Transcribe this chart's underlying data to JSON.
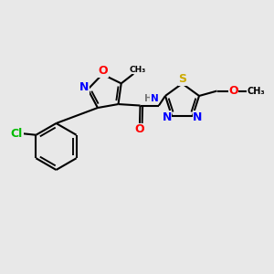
{
  "bg_color": "#e8e8e8",
  "bond_color": "#000000",
  "atom_colors": {
    "O": "#ff0000",
    "N": "#0000ff",
    "S": "#ccaa00",
    "Cl": "#00bb00",
    "C": "#000000",
    "H": "#777777"
  },
  "lw": 1.5,
  "fs": 9.0,
  "fs_small": 7.5
}
